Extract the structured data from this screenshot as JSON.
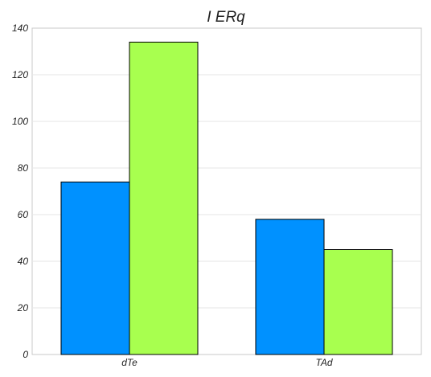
{
  "chart_data": {
    "type": "bar",
    "title": "I ERq",
    "xlabel": "",
    "ylabel": "",
    "categories": [
      "dTe",
      "TAd"
    ],
    "series": [
      {
        "values": [
          74,
          58
        ],
        "color": "#0091ff"
      },
      {
        "values": [
          134,
          45
        ],
        "color": "#a8ff4f"
      }
    ],
    "ylim": [
      0,
      140
    ],
    "yticks": [
      0,
      20,
      40,
      60,
      80,
      100,
      120,
      140
    ],
    "grid": true,
    "legend": "none"
  }
}
